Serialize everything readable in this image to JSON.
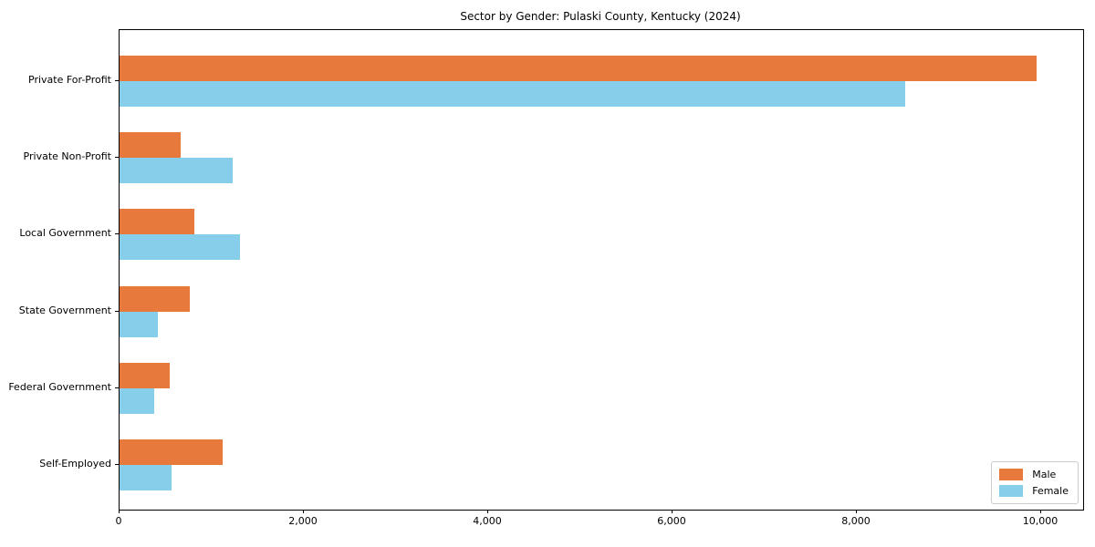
{
  "chart_data": {
    "type": "bar",
    "orientation": "horizontal",
    "title": "Sector by Gender: Pulaski County, Kentucky (2024)",
    "categories": [
      "Private For-Profit",
      "Private Non-Profit",
      "Local Government",
      "State Government",
      "Federal Government",
      "Self-Employed"
    ],
    "series": [
      {
        "name": "Male",
        "color": "#E8793D",
        "values": [
          9950,
          660,
          815,
          765,
          540,
          1115
        ]
      },
      {
        "name": "Female",
        "color": "#87CEEB",
        "values": [
          8520,
          1225,
          1305,
          420,
          375,
          560
        ]
      }
    ],
    "xlabel": "",
    "ylabel": "",
    "xlim": [
      0,
      10455
    ],
    "xtick_values": [
      0,
      2000,
      4000,
      6000,
      8000,
      10000
    ],
    "xtick_labels": [
      "0",
      "2,000",
      "4,000",
      "6,000",
      "8,000",
      "10,000"
    ],
    "grid": false,
    "legend_position": "lower right",
    "axis_color": "#000000",
    "background_color": "#ffffff"
  }
}
